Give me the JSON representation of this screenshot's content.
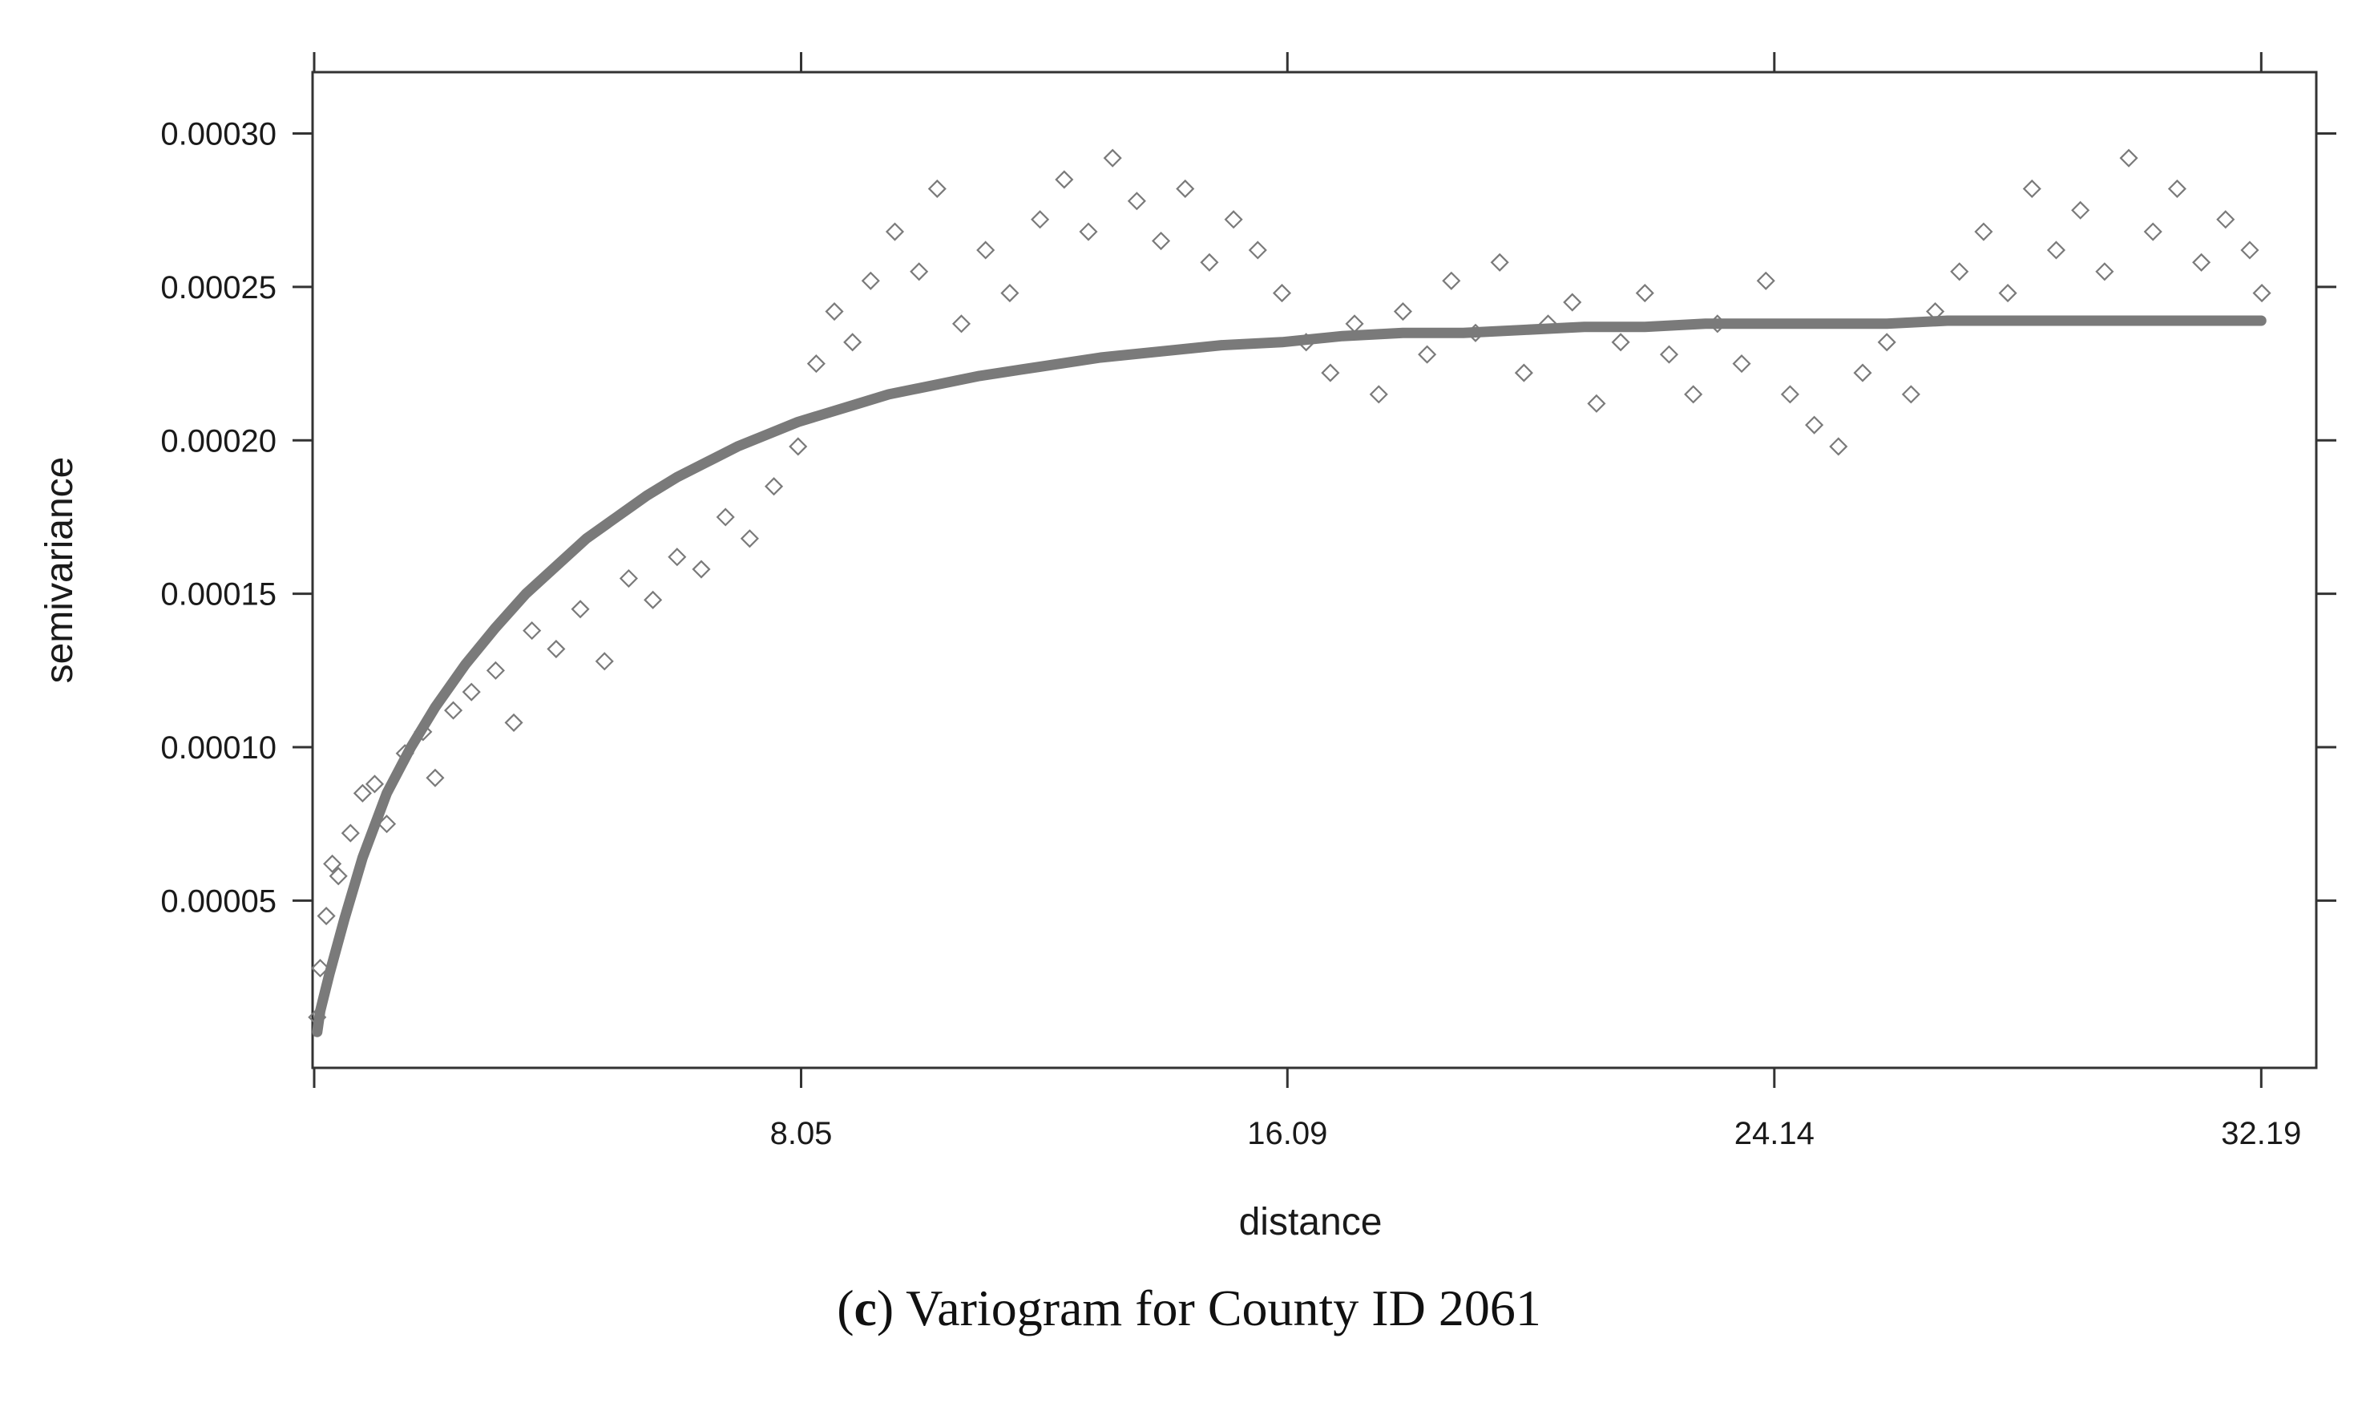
{
  "chart_data": {
    "type": "scatter",
    "xlabel": "distance",
    "ylabel": "semivariance",
    "xlim": [
      0,
      33.1
    ],
    "ylim": [
      -4.5e-06,
      0.00032
    ],
    "x_ticks": [
      {
        "value": 8.05,
        "label": "8.05"
      },
      {
        "value": 16.09,
        "label": "16.09"
      },
      {
        "value": 24.14,
        "label": "24.14"
      },
      {
        "value": 32.19,
        "label": "32.19"
      }
    ],
    "y_ticks": [
      {
        "value": 5e-05,
        "label": "0.00005"
      },
      {
        "value": 0.0001,
        "label": "0.00010"
      },
      {
        "value": 0.00015,
        "label": "0.00015"
      },
      {
        "value": 0.0002,
        "label": "0.00020"
      },
      {
        "value": 0.00025,
        "label": "0.00025"
      },
      {
        "value": 0.0003,
        "label": "0.00030"
      }
    ],
    "grid": false,
    "series": [
      {
        "kind": "points",
        "marker": "diamond-open",
        "color": "#7a7a7a",
        "points": [
          [
            0.05,
            1.2e-05
          ],
          [
            0.1,
            2.8e-05
          ],
          [
            0.2,
            4.5e-05
          ],
          [
            0.3,
            6.2e-05
          ],
          [
            0.4,
            5.8e-05
          ],
          [
            0.6,
            7.2e-05
          ],
          [
            0.8,
            8.5e-05
          ],
          [
            1.0,
            8.8e-05
          ],
          [
            1.2,
            7.5e-05
          ],
          [
            1.5,
            9.8e-05
          ],
          [
            1.8,
            0.000105
          ],
          [
            2.0,
            9e-05
          ],
          [
            2.3,
            0.000112
          ],
          [
            2.6,
            0.000118
          ],
          [
            3.0,
            0.000125
          ],
          [
            3.3,
            0.000108
          ],
          [
            3.6,
            0.000138
          ],
          [
            4.0,
            0.000132
          ],
          [
            4.4,
            0.000145
          ],
          [
            4.8,
            0.000128
          ],
          [
            5.2,
            0.000155
          ],
          [
            5.6,
            0.000148
          ],
          [
            6.0,
            0.000162
          ],
          [
            6.4,
            0.000158
          ],
          [
            6.8,
            0.000175
          ],
          [
            7.2,
            0.000168
          ],
          [
            7.6,
            0.000185
          ],
          [
            8.0,
            0.000198
          ],
          [
            8.3,
            0.000225
          ],
          [
            8.6,
            0.000242
          ],
          [
            8.9,
            0.000232
          ],
          [
            9.2,
            0.000252
          ],
          [
            9.6,
            0.000268
          ],
          [
            10.0,
            0.000255
          ],
          [
            10.3,
            0.000282
          ],
          [
            10.7,
            0.000238
          ],
          [
            11.1,
            0.000262
          ],
          [
            11.5,
            0.000248
          ],
          [
            12.0,
            0.000272
          ],
          [
            12.4,
            0.000285
          ],
          [
            12.8,
            0.000268
          ],
          [
            13.2,
            0.000292
          ],
          [
            13.6,
            0.000278
          ],
          [
            14.0,
            0.000265
          ],
          [
            14.4,
            0.000282
          ],
          [
            14.8,
            0.000258
          ],
          [
            15.2,
            0.000272
          ],
          [
            15.6,
            0.000262
          ],
          [
            16.0,
            0.000248
          ],
          [
            16.4,
            0.000232
          ],
          [
            16.8,
            0.000222
          ],
          [
            17.2,
            0.000238
          ],
          [
            17.6,
            0.000215
          ],
          [
            18.0,
            0.000242
          ],
          [
            18.4,
            0.000228
          ],
          [
            18.8,
            0.000252
          ],
          [
            19.2,
            0.000235
          ],
          [
            19.6,
            0.000258
          ],
          [
            20.0,
            0.000222
          ],
          [
            20.4,
            0.000238
          ],
          [
            20.8,
            0.000245
          ],
          [
            21.2,
            0.000212
          ],
          [
            21.6,
            0.000232
          ],
          [
            22.0,
            0.000248
          ],
          [
            22.4,
            0.000228
          ],
          [
            22.8,
            0.000215
          ],
          [
            23.2,
            0.000238
          ],
          [
            23.6,
            0.000225
          ],
          [
            24.0,
            0.000252
          ],
          [
            24.4,
            0.000215
          ],
          [
            24.8,
            0.000205
          ],
          [
            25.2,
            0.000198
          ],
          [
            25.6,
            0.000222
          ],
          [
            26.0,
            0.000232
          ],
          [
            26.4,
            0.000215
          ],
          [
            26.8,
            0.000242
          ],
          [
            27.2,
            0.000255
          ],
          [
            27.6,
            0.000268
          ],
          [
            28.0,
            0.000248
          ],
          [
            28.4,
            0.000282
          ],
          [
            28.8,
            0.000262
          ],
          [
            29.2,
            0.000275
          ],
          [
            29.6,
            0.000255
          ],
          [
            30.0,
            0.000292
          ],
          [
            30.4,
            0.000268
          ],
          [
            30.8,
            0.000282
          ],
          [
            31.2,
            0.000258
          ],
          [
            31.6,
            0.000272
          ],
          [
            32.0,
            0.000262
          ],
          [
            32.2,
            0.000248
          ]
        ]
      },
      {
        "kind": "fitted-line",
        "color": "#7a7a7a",
        "x": [
          0.05,
          0.1,
          0.25,
          0.5,
          0.8,
          1.2,
          1.6,
          2,
          2.5,
          3,
          3.5,
          4,
          4.5,
          5,
          5.5,
          6,
          6.5,
          7,
          7.5,
          8,
          8.5,
          9,
          9.5,
          10,
          11,
          12,
          13,
          14,
          15,
          16,
          17,
          18,
          19,
          20,
          21,
          22,
          23,
          24,
          25,
          26,
          27,
          28,
          29,
          30,
          31,
          32.19
        ],
        "y": [
          7.2e-06,
          1.4e-05,
          2.6e-05,
          4.4e-05,
          6.4e-05,
          8.5e-05,
          0.0001,
          0.000113,
          0.000127,
          0.000139,
          0.00015,
          0.000159,
          0.000168,
          0.000175,
          0.000182,
          0.000188,
          0.000193,
          0.000198,
          0.000202,
          0.000206,
          0.000209,
          0.000212,
          0.000215,
          0.000217,
          0.000221,
          0.000224,
          0.000227,
          0.000229,
          0.000231,
          0.000232,
          0.000234,
          0.000235,
          0.000235,
          0.000236,
          0.000237,
          0.000237,
          0.000238,
          0.000238,
          0.000238,
          0.000238,
          0.000239,
          0.000239,
          0.000239,
          0.000239,
          0.000239,
          0.000239
        ]
      }
    ]
  },
  "caption": {
    "letter": "c",
    "text": "Variogram for County ID 2061"
  }
}
